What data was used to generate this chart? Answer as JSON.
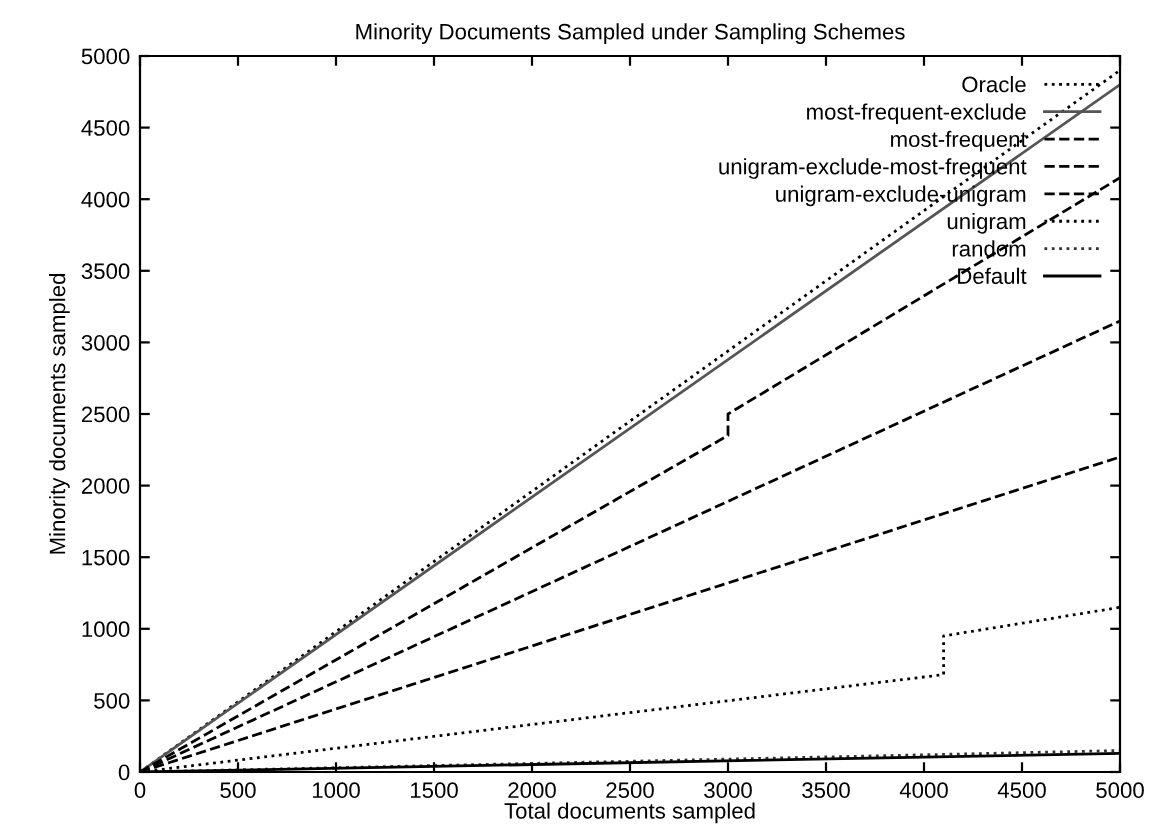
{
  "chart_data": {
    "type": "line",
    "title": "Minority Documents Sampled under Sampling Schemes",
    "xlabel": "Total documents sampled",
    "ylabel": "Minority documents sampled",
    "xlim": [
      0,
      5000
    ],
    "ylim": [
      0,
      5000
    ],
    "xticks": [
      0,
      500,
      1000,
      1500,
      2000,
      2500,
      3000,
      3500,
      4000,
      4500,
      5000
    ],
    "yticks": [
      0,
      500,
      1000,
      1500,
      2000,
      2500,
      3000,
      3500,
      4000,
      4500,
      5000
    ],
    "grid": false,
    "legend": "top right",
    "marker": "none",
    "series": [
      {
        "name": "Oracle",
        "color": "#000000",
        "line_style": "dotted",
        "x": [
          0,
          5000
        ],
        "values": [
          0,
          4900
        ]
      },
      {
        "name": "most-frequent-exclude",
        "color": "#555555",
        "line_style": "solid",
        "x": [
          0,
          5000
        ],
        "values": [
          0,
          4800
        ]
      },
      {
        "name": "most-frequent",
        "color": "#000000",
        "line_style": "dashed",
        "x": [
          0,
          3000,
          3000,
          5000
        ],
        "values": [
          0,
          2350,
          2500,
          4150
        ]
      },
      {
        "name": "unigram-exclude-most-frequent",
        "color": "#000000",
        "line_style": "dashed",
        "x": [
          0,
          5000
        ],
        "values": [
          0,
          3150
        ]
      },
      {
        "name": "unigram-exclude-unigram",
        "color": "#000000",
        "line_style": "dashed",
        "x": [
          0,
          5000
        ],
        "values": [
          0,
          2200
        ]
      },
      {
        "name": "unigram",
        "color": "#000000",
        "line_style": "dotted",
        "x": [
          0,
          4100,
          4100,
          5000
        ],
        "values": [
          0,
          680,
          950,
          1150
        ]
      },
      {
        "name": "random",
        "color": "#333333",
        "line_style": "dotted",
        "x": [
          0,
          5000
        ],
        "values": [
          0,
          150
        ]
      },
      {
        "name": "Default",
        "color": "#000000",
        "line_style": "solid",
        "x": [
          0,
          5000
        ],
        "values": [
          0,
          130
        ]
      }
    ]
  }
}
